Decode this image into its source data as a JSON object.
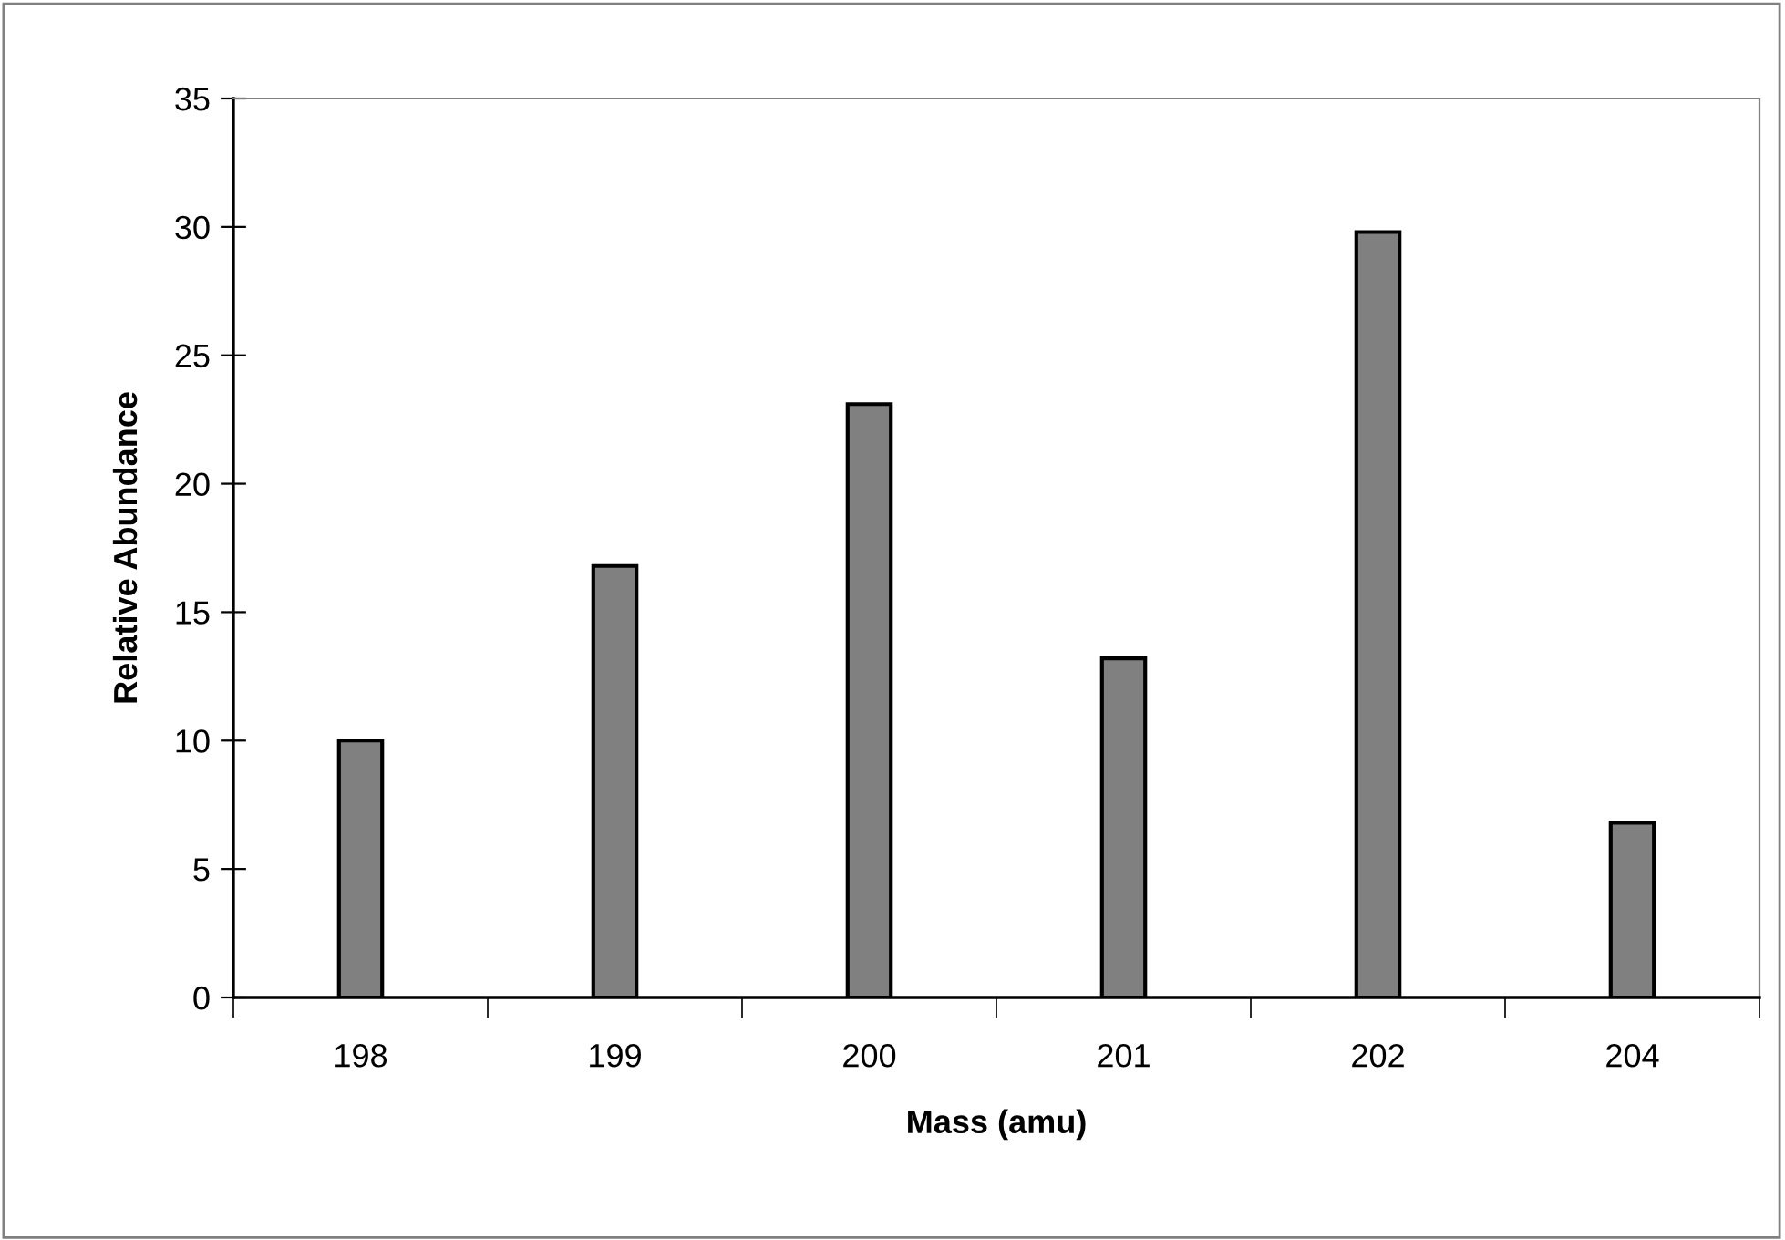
{
  "chart_data": {
    "type": "bar",
    "xlabel": "Mass (amu)",
    "ylabel": "Relative Abundance",
    "categories": [
      "198",
      "199",
      "200",
      "201",
      "202",
      "204"
    ],
    "values": [
      10.0,
      16.8,
      23.1,
      13.2,
      29.8,
      6.8
    ],
    "color": "#808080",
    "ylim": [
      0,
      35
    ],
    "yticks": [
      0,
      5,
      10,
      15,
      20,
      25,
      30,
      35
    ],
    "grid": false,
    "legend": false
  }
}
